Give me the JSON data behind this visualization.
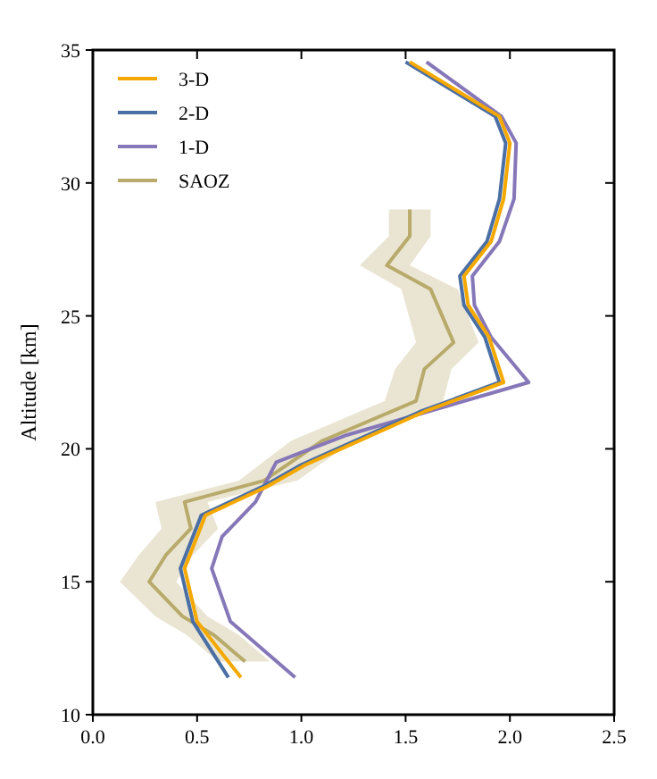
{
  "chart_data": {
    "type": "line",
    "orientation": "horizontal",
    "ylabel": "Altitude [km]",
    "xlim": [
      0,
      2.5
    ],
    "ylim": [
      10,
      35
    ],
    "xticks": [
      {
        "value": 0,
        "label": "0.0"
      },
      {
        "value": 0.5,
        "label": "0.5"
      },
      {
        "value": 1,
        "label": "1.0"
      },
      {
        "value": 1.5,
        "label": "1.5"
      },
      {
        "value": 2,
        "label": "2.0"
      },
      {
        "value": 2.5,
        "label": "2.5"
      }
    ],
    "yticks": [
      10,
      15,
      20,
      25,
      30,
      35
    ],
    "grid": false,
    "legend": "top left",
    "marker": "none",
    "line_style": "solid",
    "series": [
      {
        "name": "3-D",
        "color": "#f5a800",
        "x": [
          34.55,
          32.5,
          31.5,
          29.4,
          27.8,
          26.5,
          25.4,
          24.2,
          22.5,
          21.4,
          19.4,
          18.6,
          17.5,
          15.5,
          13.5,
          11.4
        ],
        "values": [
          1.52,
          1.95,
          2.0,
          1.97,
          1.91,
          1.78,
          1.8,
          1.9,
          1.97,
          1.59,
          1.02,
          0.84,
          0.54,
          0.44,
          0.5,
          0.71
        ]
      },
      {
        "name": "2-D",
        "color": "#4a6fa5",
        "x": [
          34.55,
          32.5,
          31.5,
          29.4,
          27.8,
          26.5,
          25.4,
          24.2,
          22.5,
          21.4,
          19.4,
          18.6,
          17.5,
          15.5,
          13.5,
          11.4
        ],
        "values": [
          1.5,
          1.93,
          1.98,
          1.95,
          1.89,
          1.76,
          1.78,
          1.88,
          1.95,
          1.57,
          1.0,
          0.82,
          0.52,
          0.42,
          0.48,
          0.65
        ]
      },
      {
        "name": "1-D",
        "color": "#8677b8",
        "x": [
          34.55,
          32.5,
          31.5,
          29.4,
          27.8,
          26.5,
          25.4,
          24.2,
          22.5,
          20.5,
          19.5,
          18.0,
          16.7,
          15.5,
          13.5,
          11.4
        ],
        "values": [
          1.6,
          1.96,
          2.03,
          2.02,
          1.95,
          1.82,
          1.83,
          1.91,
          2.09,
          1.21,
          0.88,
          0.78,
          0.62,
          0.57,
          0.66,
          0.97
        ]
      },
      {
        "name": "SAOZ",
        "color": "#b8aa6a",
        "x": [
          29,
          28,
          26.9,
          26,
          24,
          23,
          21.8,
          20.3,
          18.8,
          18,
          17,
          16,
          15,
          13.7,
          13,
          12
        ],
        "values": [
          1.52,
          1.52,
          1.41,
          1.62,
          1.73,
          1.59,
          1.55,
          1.1,
          0.82,
          0.44,
          0.47,
          0.35,
          0.27,
          0.43,
          0.58,
          0.73
        ],
        "lower": [
          1.42,
          1.42,
          1.28,
          1.48,
          1.55,
          1.45,
          1.4,
          0.95,
          0.7,
          0.3,
          0.33,
          0.22,
          0.13,
          0.3,
          0.45,
          0.6
        ],
        "upper": [
          1.62,
          1.62,
          1.52,
          1.75,
          1.85,
          1.72,
          1.68,
          1.25,
          0.98,
          0.55,
          0.6,
          0.48,
          0.4,
          0.55,
          0.7,
          0.85
        ]
      }
    ]
  }
}
